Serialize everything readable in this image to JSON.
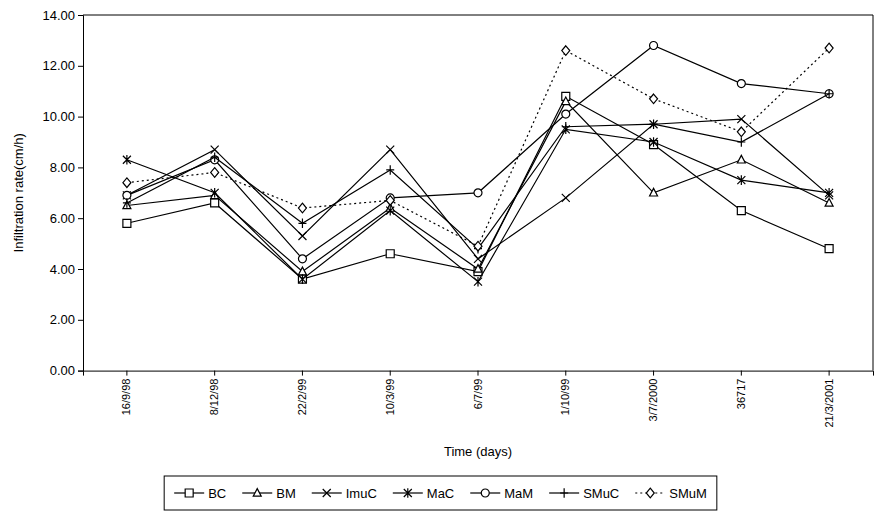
{
  "chart_data": {
    "type": "line",
    "x_label": "Time (days)",
    "y_label": "Infiltration rate(cm/h)",
    "categories": [
      "16/9/98",
      "8/12/98",
      "22/2/99",
      "10/3/99",
      "6/7/99",
      "1/10/99",
      "3/7/2000",
      "36717",
      "21/3/2001"
    ],
    "series": [
      {
        "name": "BC",
        "color": "#000000",
        "marker": "square",
        "line_style": "solid",
        "values": [
          5.8,
          6.6,
          3.6,
          4.6,
          3.9,
          10.8,
          8.9,
          6.3,
          4.8
        ]
      },
      {
        "name": "BM",
        "color": "#000000",
        "marker": "triangle",
        "line_style": "solid",
        "values": [
          6.5,
          6.9,
          3.9,
          6.4,
          4.0,
          10.6,
          7.0,
          8.3,
          6.6
        ]
      },
      {
        "name": "ImuC",
        "color": "#000000",
        "marker": "x",
        "line_style": "solid",
        "values": [
          6.9,
          8.7,
          5.3,
          8.7,
          4.4,
          6.8,
          9.7,
          9.9,
          6.9
        ]
      },
      {
        "name": "MaC",
        "color": "#000000",
        "marker": "star",
        "line_style": "solid",
        "values": [
          8.3,
          7.0,
          3.6,
          6.3,
          3.5,
          9.5,
          9.0,
          7.5,
          7.0
        ]
      },
      {
        "name": "MaM",
        "color": "#000000",
        "marker": "circle",
        "line_style": "solid",
        "values": [
          6.9,
          8.3,
          4.4,
          6.8,
          7.0,
          10.1,
          12.8,
          11.3,
          10.9
        ]
      },
      {
        "name": "SMuC",
        "color": "#000000",
        "marker": "plus",
        "line_style": "solid",
        "values": [
          6.6,
          8.4,
          5.8,
          7.9,
          4.8,
          9.6,
          9.7,
          9.0,
          10.9
        ]
      },
      {
        "name": "SMuM",
        "color": "#000000",
        "marker": "diamond",
        "line_style": "dotted",
        "values": [
          7.4,
          7.8,
          6.4,
          6.7,
          4.9,
          12.6,
          10.7,
          9.4,
          12.7
        ]
      }
    ],
    "ylim": [
      0,
      14
    ],
    "yticks": [
      {
        "value": 0,
        "label": "0.00"
      },
      {
        "value": 2,
        "label": "2.00"
      },
      {
        "value": 4,
        "label": "4.00"
      },
      {
        "value": 6,
        "label": "6.00"
      },
      {
        "value": 8,
        "label": "8.00"
      },
      {
        "value": 10,
        "label": "10.00"
      },
      {
        "value": 12,
        "label": "12.00"
      },
      {
        "value": 14,
        "label": "14.00"
      }
    ],
    "grid": false,
    "legend": "bottom"
  }
}
